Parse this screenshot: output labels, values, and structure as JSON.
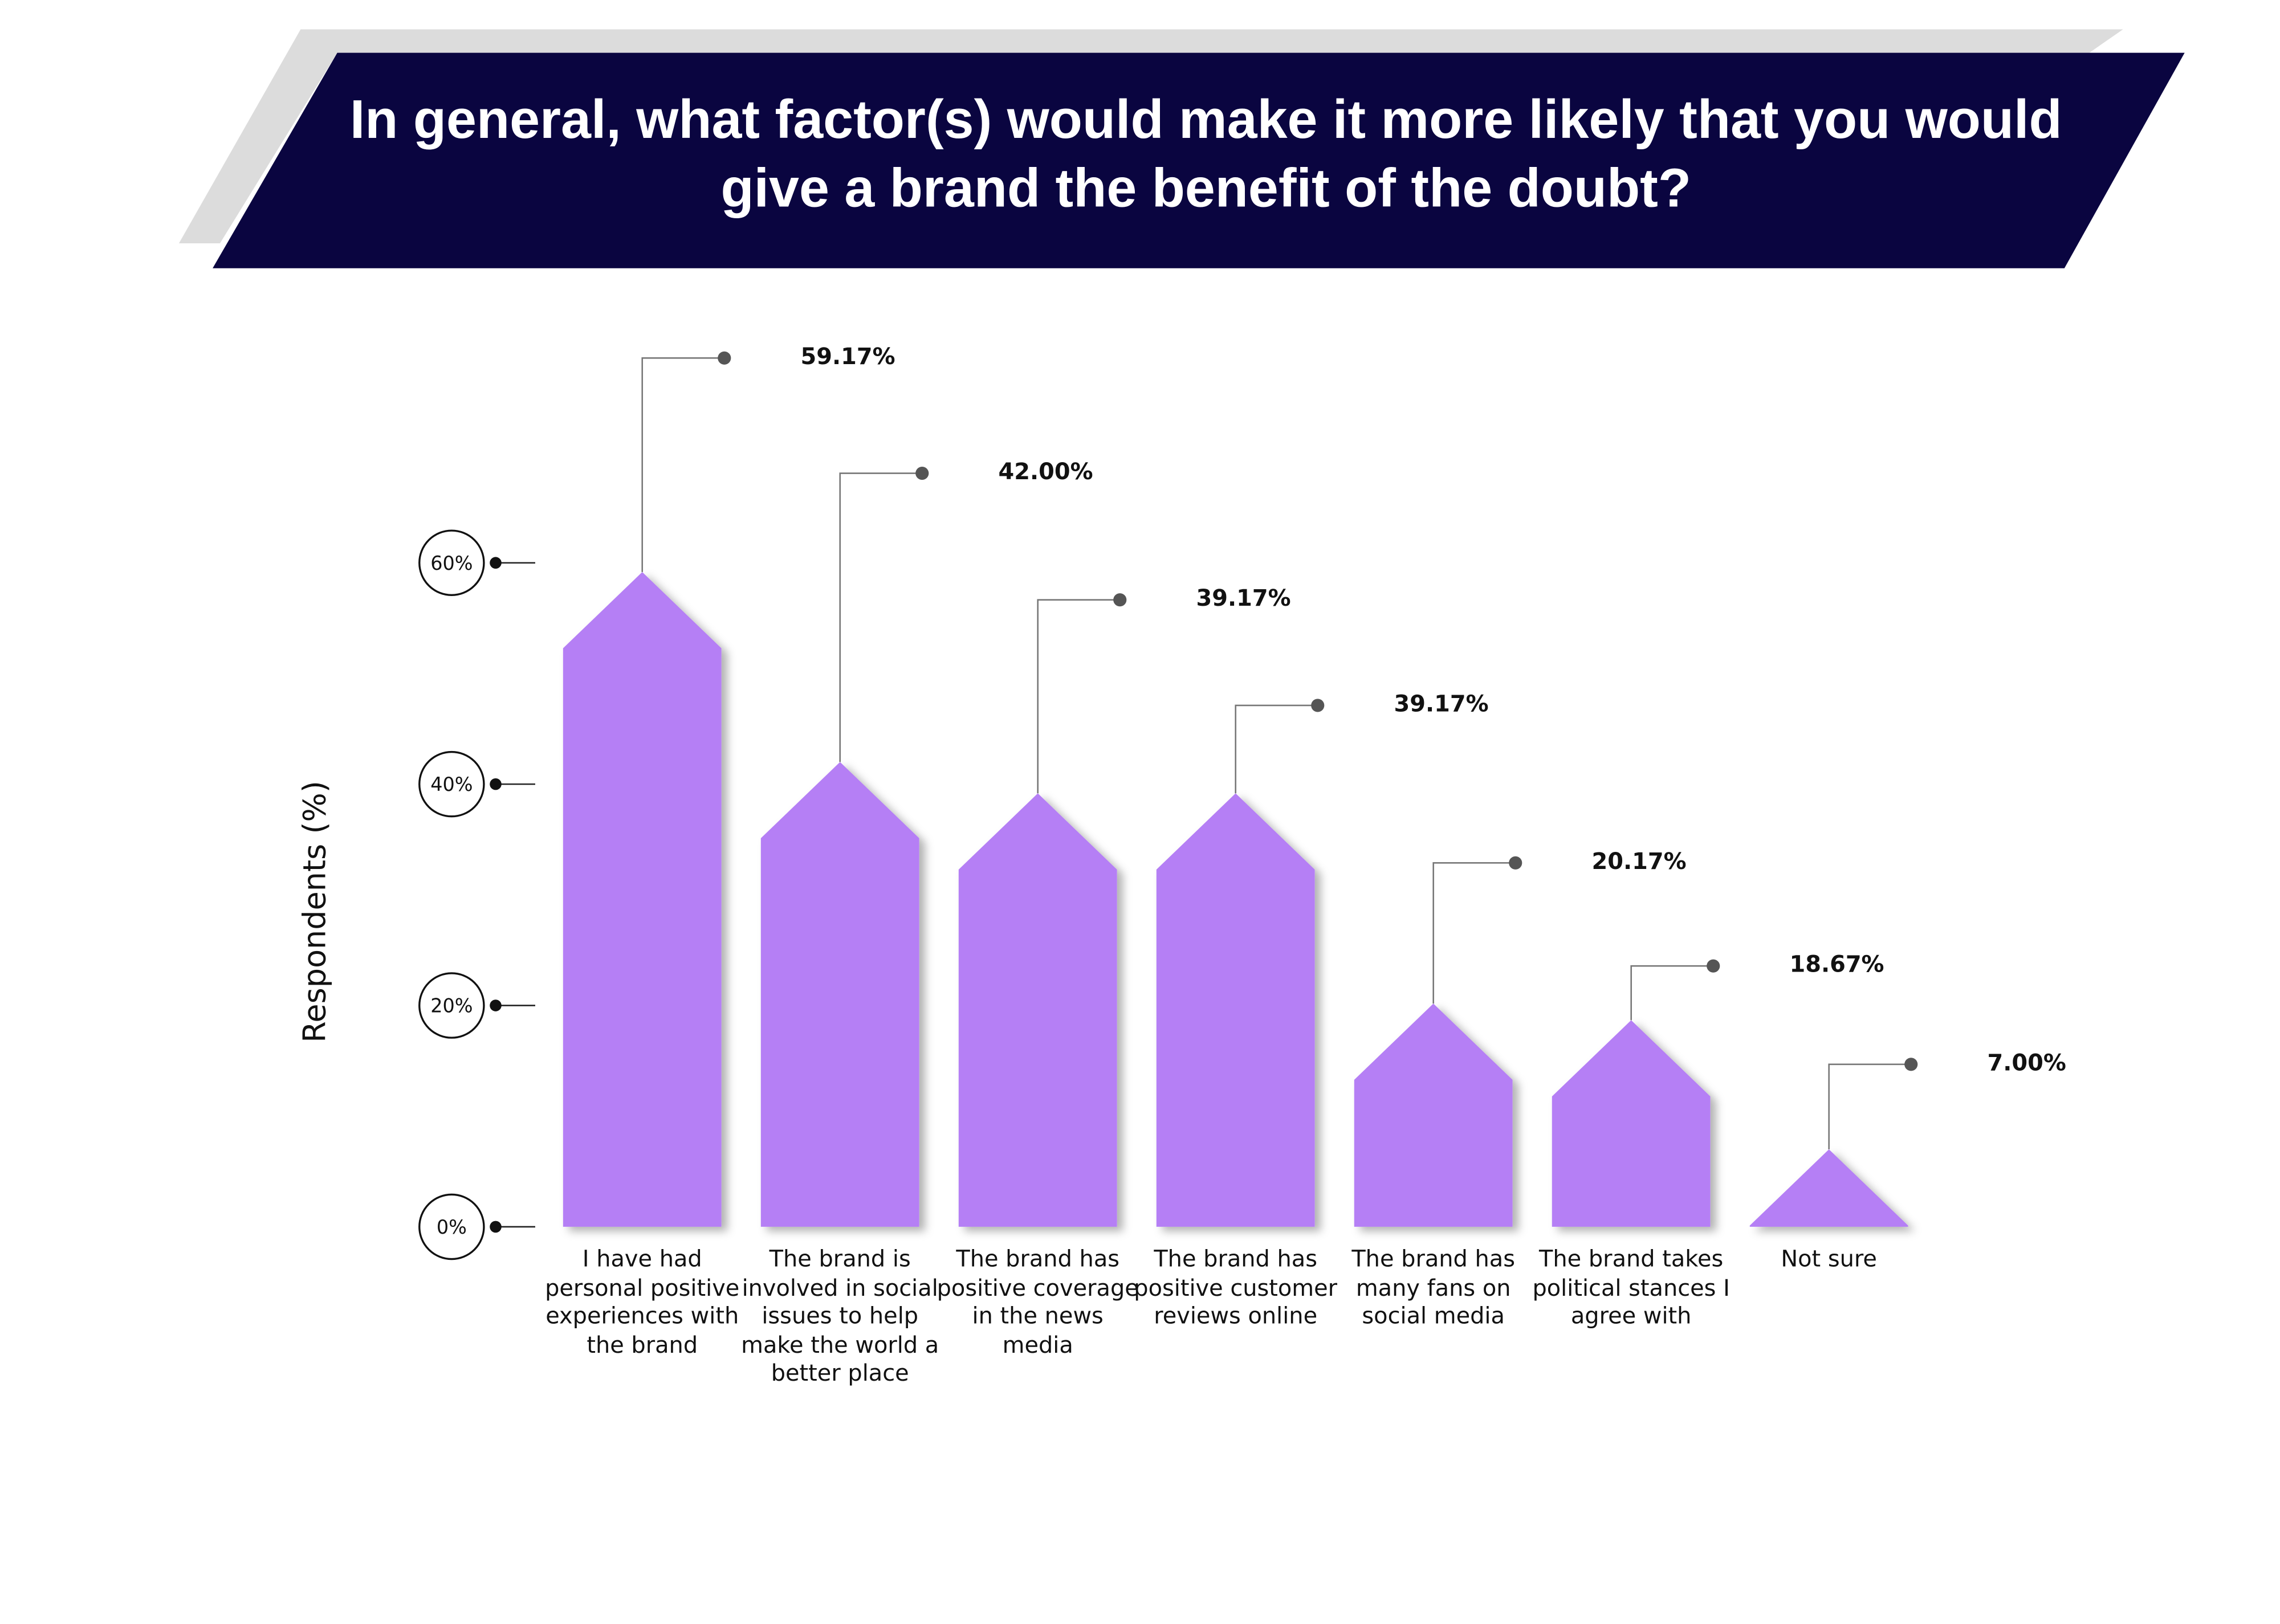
{
  "chart_data": {
    "type": "bar",
    "title": "In general, what factor(s) would make it more likely that you would give a brand the benefit of the doubt?",
    "y_label": "Respondents (%)",
    "categories": [
      "I have had personal positive experiences with the brand",
      "The brand is involved in social issues to help make the world a better place",
      "The brand has positive coverage in the news media",
      "The brand has positive customer reviews online",
      "The brand has many fans on social media",
      "The brand takes political stances I agree with",
      "Not sure"
    ],
    "values": [
      59.17,
      42.0,
      39.17,
      39.17,
      20.17,
      18.67,
      7.0
    ],
    "value_labels": [
      "59.17%",
      "42.00%",
      "39.17%",
      "39.17%",
      "20.17%",
      "18.67%",
      "7.00%"
    ],
    "color": "#b57ff5",
    "ylim": [
      0,
      60
    ],
    "yticks": [
      {
        "value": 0,
        "label": "0%"
      },
      {
        "value": 20,
        "label": "20%"
      },
      {
        "value": 40,
        "label": "40%"
      },
      {
        "value": 60,
        "label": "60%"
      }
    ]
  }
}
